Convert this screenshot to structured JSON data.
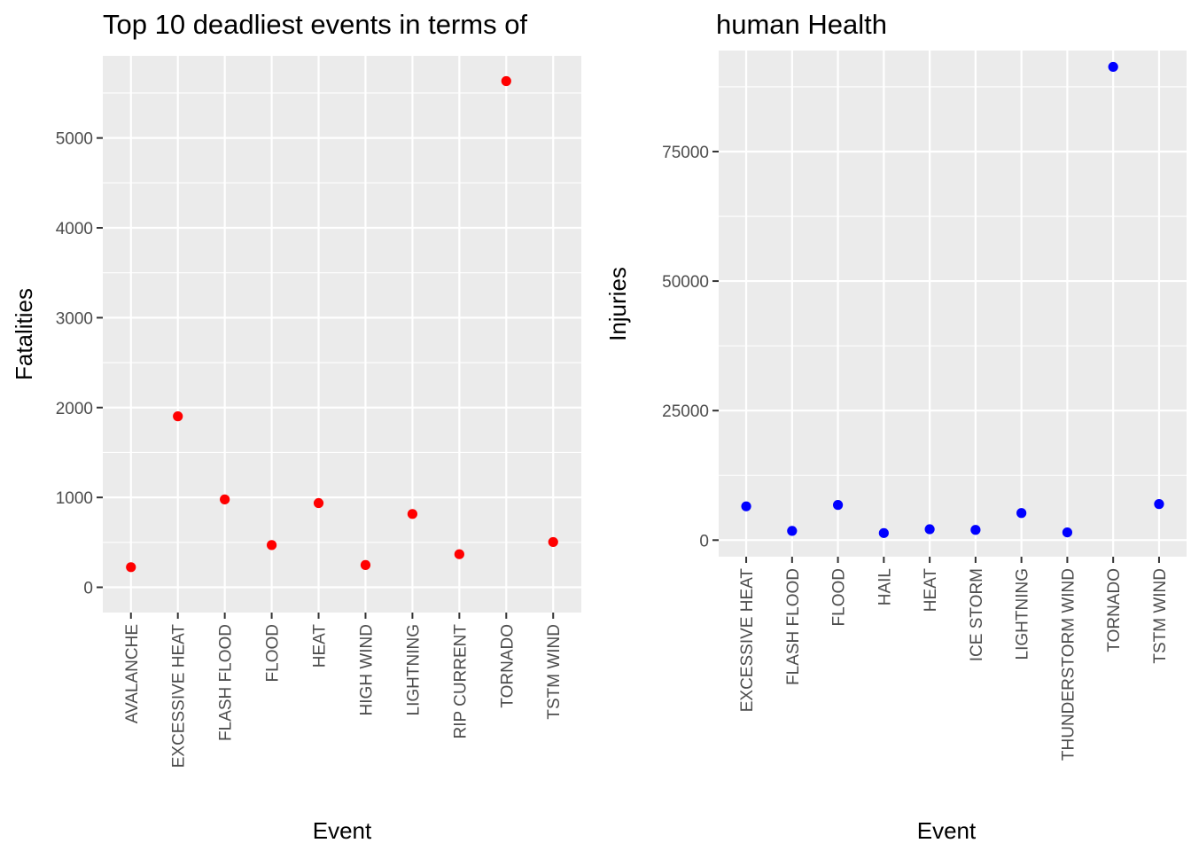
{
  "chart_data": [
    {
      "type": "scatter",
      "title": "Top 10 deadliest events in terms of",
      "xlabel": "Event",
      "ylabel": "Fatalities",
      "color": "#ff0000",
      "categories": [
        "AVALANCHE",
        "EXCESSIVE HEAT",
        "FLASH FLOOD",
        "FLOOD",
        "HEAT",
        "HIGH WIND",
        "LIGHTNING",
        "RIP CURRENT",
        "TORNADO",
        "TSTM WIND"
      ],
      "values": [
        224,
        1903,
        978,
        470,
        937,
        248,
        816,
        368,
        5633,
        504
      ],
      "yticks": [
        0,
        1000,
        2000,
        3000,
        4000,
        5000
      ],
      "ylim": [
        -281,
        5914
      ],
      "grid": true
    },
    {
      "type": "scatter",
      "title": "human Health",
      "xlabel": "Event",
      "ylabel": "Injuries",
      "color": "#0000ff",
      "categories": [
        "EXCESSIVE HEAT",
        "FLASH FLOOD",
        "FLOOD",
        "HAIL",
        "HEAT",
        "ICE STORM",
        "LIGHTNING",
        "THUNDERSTORM WIND",
        "TORNADO",
        "TSTM WIND"
      ],
      "values": [
        6525,
        1777,
        6789,
        1361,
        2100,
        1975,
        5230,
        1488,
        91346,
        6957
      ],
      "yticks": [
        0,
        25000,
        50000,
        75000
      ],
      "ylim": [
        -3200,
        94500
      ],
      "grid": true
    }
  ]
}
